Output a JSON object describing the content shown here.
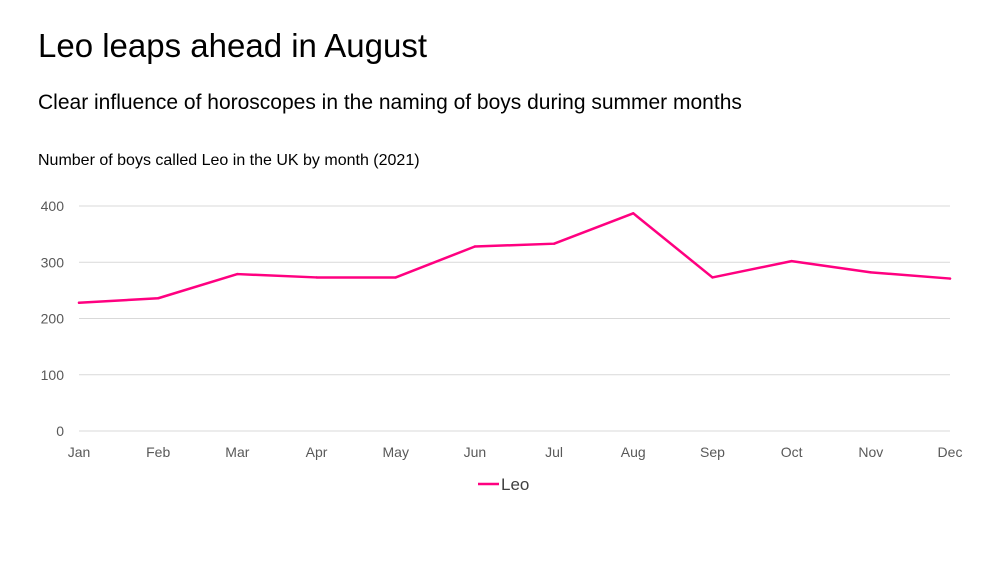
{
  "header": {
    "title": "Leo leaps ahead in August",
    "subtitle": "Clear influence of horoscopes in the naming of boys during summer months"
  },
  "chart_data": {
    "type": "line",
    "title": "Number of boys called Leo in the UK by month (2021)",
    "xlabel": "",
    "ylabel": "",
    "categories": [
      "Jan",
      "Feb",
      "Mar",
      "Apr",
      "May",
      "Jun",
      "Jul",
      "Aug",
      "Sep",
      "Oct",
      "Nov",
      "Dec"
    ],
    "series": [
      {
        "name": "Leo",
        "color": "#ff0080",
        "values": [
          228,
          236,
          279,
          273,
          273,
          328,
          333,
          387,
          273,
          302,
          282,
          271
        ]
      }
    ],
    "ylim": [
      0,
      400
    ],
    "yticks": [
      0,
      100,
      200,
      300,
      400
    ],
    "grid": true,
    "legend_position": "bottom-center"
  }
}
